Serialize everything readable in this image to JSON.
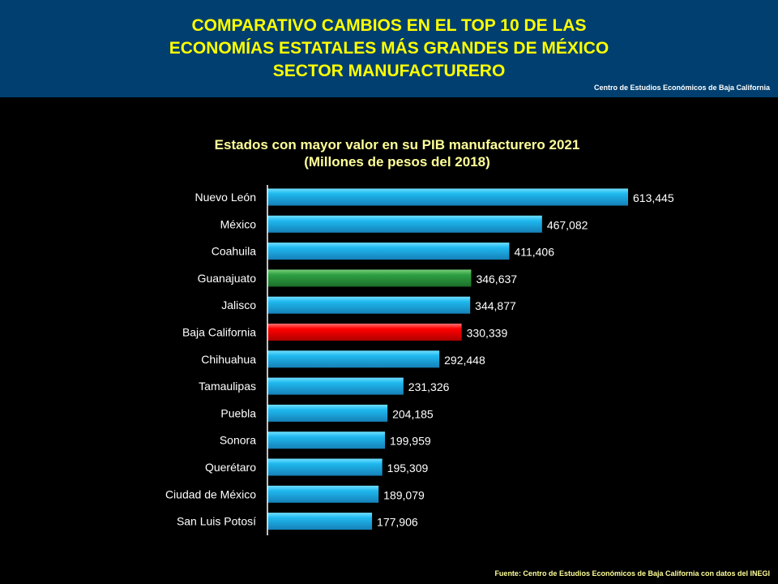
{
  "header": {
    "title": "COMPARATIVO  CAMBIOS  EN  EL TOP 10 DE  LAS\nECONOMÍAS ESTATALES MÁS GRANDES DE MÉXICO\nSECTOR MANUFACTURERO",
    "org": "Centro de Estudios Económicos de Baja California"
  },
  "footer": {
    "source": "Fuente:  Centro de Estudios Económicos de Baja California con datos del INEGI"
  },
  "colors": {
    "default": "#1fb4ea",
    "highlight_green": "#2ea043",
    "highlight_red": "#ff0000"
  },
  "chart_data": {
    "type": "bar",
    "orientation": "horizontal",
    "title": "Estados con mayor valor en su PIB manufacturero 2021",
    "subtitle": "(Millones de pesos del 2018)",
    "categories": [
      "Nuevo León",
      "México",
      "Coahuila",
      "Guanajuato",
      "Jalisco",
      "Baja California",
      "Chihuahua",
      "Tamaulipas",
      "Puebla",
      "Sonora",
      "Querétaro",
      "Ciudad de México",
      "San Luis Potosí"
    ],
    "values": [
      613445,
      467082,
      411406,
      346637,
      344877,
      330339,
      292448,
      231326,
      204185,
      199959,
      195309,
      189079,
      177906
    ],
    "labels": [
      "613,445",
      "467,082",
      "411,406",
      "346,637",
      "344,877",
      "330,339",
      "292,448",
      "231,326",
      "204,185",
      "199,959",
      "195,309",
      "189,079",
      "177,906"
    ],
    "bar_colors": [
      "default",
      "default",
      "default",
      "highlight_green",
      "default",
      "highlight_red",
      "default",
      "default",
      "default",
      "default",
      "default",
      "default",
      "default"
    ],
    "xlim": [
      0,
      613445
    ],
    "grid": false
  }
}
